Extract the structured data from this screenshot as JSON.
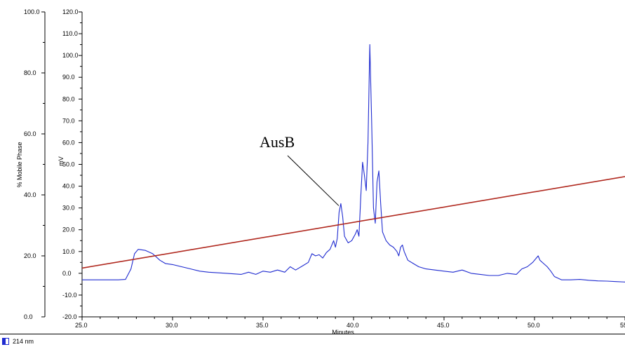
{
  "chart_data": {
    "type": "line",
    "xlabel": "Minutes",
    "ylabel_left": "% Mobile Phase",
    "ylabel_right": "mV",
    "x_ticks": [
      "25.0",
      "30.0",
      "35.0",
      "40.0",
      "45.0",
      "50.0",
      "55."
    ],
    "left_ticks": [
      "100.0",
      "80.0",
      "60.0",
      "40.0",
      "20.0",
      "0.0"
    ],
    "right_ticks": [
      "120.0",
      "110.0",
      "100.0",
      "90.0",
      "80.0",
      "70.0",
      "60.0",
      "50.0",
      "40.0",
      "30.0",
      "20.0",
      "10.0",
      "0.0",
      "-10.0",
      "-20.0"
    ],
    "xlim": [
      25,
      55
    ],
    "left_ylim": [
      0,
      100
    ],
    "right_ylim": [
      -20,
      120
    ],
    "annotation": {
      "text": "AusB",
      "target_x": 39.3,
      "target_y": 32
    },
    "legend_label": "214 nm",
    "series": [
      {
        "name": "214 nm",
        "axis": "right",
        "color": "#1f2bd0",
        "x": [
          25.0,
          26.0,
          27.0,
          27.4,
          27.7,
          27.9,
          28.1,
          28.5,
          28.9,
          29.3,
          29.6,
          30.0,
          30.5,
          31.0,
          31.5,
          32.0,
          33.0,
          33.8,
          34.2,
          34.6,
          35.0,
          35.4,
          35.8,
          36.2,
          36.5,
          36.8,
          37.2,
          37.5,
          37.7,
          37.9,
          38.1,
          38.3,
          38.5,
          38.7,
          38.9,
          39.0,
          39.1,
          39.2,
          39.3,
          39.4,
          39.5,
          39.7,
          39.9,
          40.1,
          40.2,
          40.3,
          40.4,
          40.5,
          40.6,
          40.7,
          40.8,
          40.9,
          41.0,
          41.1,
          41.2,
          41.3,
          41.4,
          41.5,
          41.6,
          41.8,
          42.0,
          42.2,
          42.4,
          42.5,
          42.6,
          42.7,
          42.8,
          43.0,
          43.3,
          43.6,
          44.0,
          44.5,
          45.0,
          45.5,
          46.0,
          46.5,
          47.0,
          47.5,
          48.0,
          48.5,
          49.0,
          49.3,
          49.6,
          49.9,
          50.1,
          50.2,
          50.3,
          50.5,
          50.7,
          50.9,
          51.1,
          51.5,
          52.0,
          52.5,
          53.0,
          53.5,
          54.0,
          54.5,
          55.0
        ],
        "y": [
          -3.0,
          -3.0,
          -3.0,
          -2.8,
          2.0,
          9.0,
          11.0,
          10.5,
          9.0,
          6.0,
          4.5,
          4.0,
          3.0,
          2.0,
          1.0,
          0.5,
          0.0,
          -0.5,
          0.5,
          -0.5,
          1.0,
          0.5,
          1.5,
          0.5,
          3.0,
          1.5,
          3.5,
          5.0,
          9.0,
          8.0,
          8.5,
          7.0,
          9.5,
          11.0,
          15.0,
          12.0,
          16.0,
          28.0,
          32.0,
          26.0,
          17.0,
          14.0,
          15.0,
          18.0,
          20.0,
          17.0,
          35.0,
          51.0,
          45.0,
          38.0,
          60.0,
          105.0,
          70.0,
          30.0,
          23.0,
          42.0,
          47.0,
          32.0,
          19.0,
          15.0,
          13.0,
          12.0,
          10.0,
          8.0,
          12.0,
          13.0,
          10.0,
          6.0,
          4.5,
          3.0,
          2.0,
          1.5,
          1.0,
          0.5,
          1.5,
          0.0,
          -0.5,
          -1.0,
          -1.0,
          0.0,
          -0.5,
          2.0,
          3.0,
          5.0,
          7.0,
          8.0,
          6.0,
          4.5,
          3.0,
          1.0,
          -1.5,
          -3.0,
          -3.0,
          -2.8,
          -3.2,
          -3.5,
          -3.6,
          -3.8,
          -4.0
        ]
      },
      {
        "name": "% Mobile Phase",
        "axis": "left",
        "color": "#b0281e",
        "x": [
          25.0,
          55.0
        ],
        "y": [
          16.0,
          46.0
        ]
      }
    ]
  }
}
